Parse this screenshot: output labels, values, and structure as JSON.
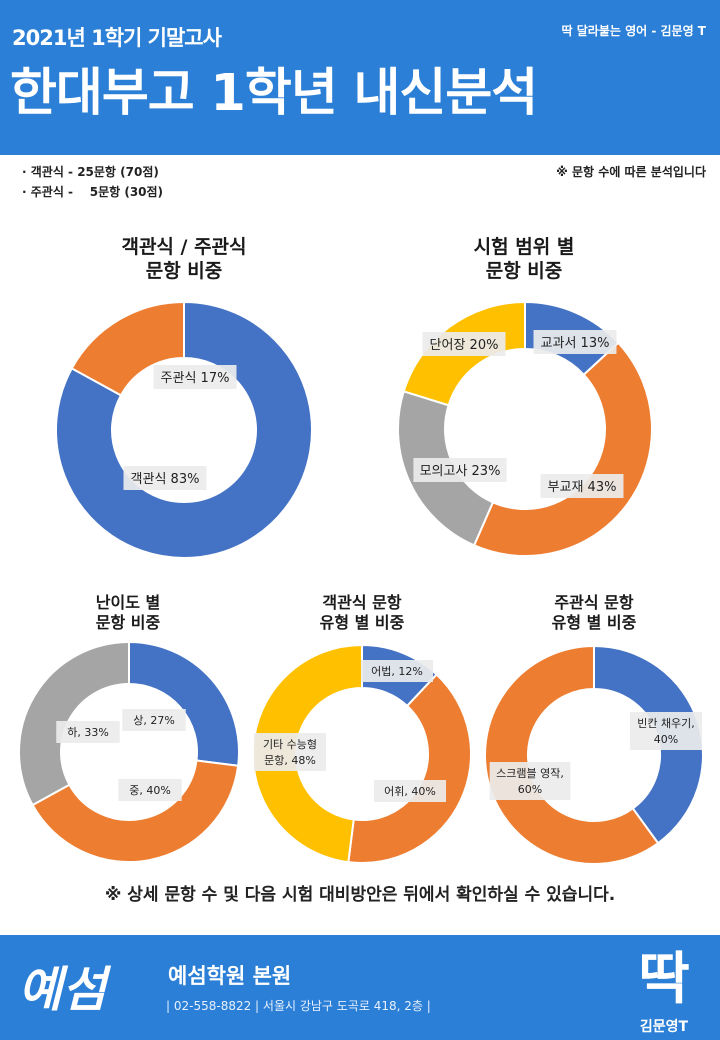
{
  "header": {
    "subtitle": "2021년 1학기 기말고사",
    "author": "딱 달라붙는 영어 - 김문영 T",
    "title": "한대부고 1학년 내신분석"
  },
  "info": {
    "line1": "· 객관식 - 25문항 (70점)",
    "line2": "· 주관식 -    5문항 (30점)",
    "note": "※ 문항 수에 따른 분석입니다"
  },
  "colors": {
    "blue": "#4472c4",
    "orange": "#ed7d31",
    "gray": "#a5a5a5",
    "yellow": "#ffc000",
    "brand": "#2b7fd6"
  },
  "chart_data": [
    {
      "type": "pie",
      "title": [
        "객관식 / 주관식",
        "문항 비중"
      ],
      "categories": [
        "객관식",
        "주관식"
      ],
      "values": [
        83,
        17
      ],
      "labels": [
        "객관식 83%",
        "주관식 17%"
      ],
      "colors": [
        "#4472c4",
        "#ed7d31"
      ]
    },
    {
      "type": "pie",
      "title": [
        "시험 범위 별",
        "문항 비중"
      ],
      "categories": [
        "교과서",
        "부교재",
        "모의고사",
        "단어장"
      ],
      "values": [
        13,
        43,
        23,
        20
      ],
      "labels": [
        "교과서 13%",
        "부교재 43%",
        "모의고사 23%",
        "단어장 20%"
      ],
      "colors": [
        "#4472c4",
        "#ed7d31",
        "#a5a5a5",
        "#ffc000"
      ]
    },
    {
      "type": "pie",
      "title": [
        "난이도 별",
        "문항 비중"
      ],
      "categories": [
        "상",
        "중",
        "하"
      ],
      "values": [
        27,
        40,
        33
      ],
      "labels": [
        "상, 27%",
        "중, 40%",
        "하, 33%"
      ],
      "colors": [
        "#4472c4",
        "#ed7d31",
        "#a5a5a5"
      ]
    },
    {
      "type": "pie",
      "title": [
        "객관식 문항",
        "유형 별 비중"
      ],
      "categories": [
        "어법",
        "어휘",
        "기타 수능형 문항"
      ],
      "values": [
        12,
        40,
        48
      ],
      "labels": [
        "어법, 12%",
        "어휘, 40%",
        "기타 수능형|문항, 48%"
      ],
      "colors": [
        "#4472c4",
        "#ed7d31",
        "#ffc000"
      ]
    },
    {
      "type": "pie",
      "title": [
        "주관식 문항",
        "유형 별 비중"
      ],
      "categories": [
        "빈칸 채우기",
        "스크램블 영작"
      ],
      "values": [
        40,
        60
      ],
      "labels": [
        "빈칸 채우기,|40%",
        "스크램블 영작,|60%"
      ],
      "colors": [
        "#4472c4",
        "#ed7d31"
      ]
    }
  ],
  "bottom_note": "※ 상세 문항 수 및 다음 시험 대비방안은 뒤에서 확인하실 수 있습니다.",
  "footer": {
    "logo_text": "예섬",
    "academy": "예섬학원 본원",
    "contact": "|  02-558-8822  |  서울시  강남구  도곡로 418, 2층  |",
    "brand_mark": "딱",
    "brand_name": "김문영T"
  }
}
